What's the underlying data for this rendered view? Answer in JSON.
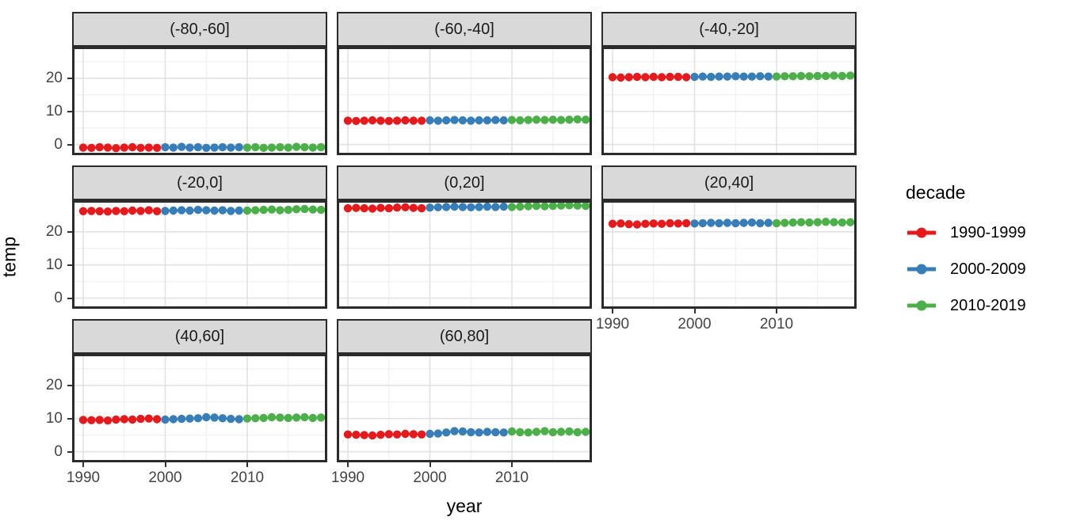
{
  "figure": {
    "y_axis_title": "temp",
    "x_axis_title": "year",
    "legend": {
      "title": "decade",
      "entries": [
        {
          "label": "1990-1999",
          "color": "#E41A1C"
        },
        {
          "label": "2000-2009",
          "color": "#377EB8"
        },
        {
          "label": "2010-2019",
          "color": "#4DAF4A"
        }
      ]
    }
  },
  "chart_data": {
    "type": "scatter",
    "title": "",
    "xlabel": "year",
    "ylabel": "temp",
    "legend_title": "decade",
    "legend_position": "right",
    "grid": true,
    "facet_variable": "latitude band",
    "x_ticks": [
      1990,
      2000,
      2010
    ],
    "x_minor_ticks": [
      1995,
      2005,
      2015
    ],
    "y_ticks": [
      0,
      10,
      20
    ],
    "y_minor_ticks": [
      5,
      15,
      25
    ],
    "xlim": [
      1988.6,
      2020.4
    ],
    "ylim": [
      -3.2,
      29.5
    ],
    "x": [
      1990,
      1991,
      1992,
      1993,
      1994,
      1995,
      1996,
      1997,
      1998,
      1999,
      2000,
      2001,
      2002,
      2003,
      2004,
      2005,
      2006,
      2007,
      2008,
      2009,
      2010,
      2011,
      2012,
      2013,
      2014,
      2015,
      2016,
      2017,
      2018,
      2019
    ],
    "series_by_decade": [
      {
        "name": "1990-1999",
        "start": 1990,
        "end": 1999,
        "color": "#E41A1C"
      },
      {
        "name": "2000-2009",
        "start": 2000,
        "end": 2009,
        "color": "#377EB8"
      },
      {
        "name": "2010-2019",
        "start": 2010,
        "end": 2019,
        "color": "#4DAF4A"
      }
    ],
    "facets": [
      {
        "label": "(-80,-60]",
        "values": [
          -0.9,
          -1.0,
          -0.8,
          -0.9,
          -1.1,
          -0.9,
          -0.8,
          -1.0,
          -0.9,
          -1.0,
          -0.8,
          -0.9,
          -0.7,
          -0.9,
          -0.8,
          -1.0,
          -0.9,
          -0.8,
          -0.9,
          -0.8,
          -0.9,
          -0.8,
          -1.0,
          -0.9,
          -0.8,
          -0.9,
          -0.7,
          -0.8,
          -0.9,
          -0.8
        ]
      },
      {
        "label": "(-60,-40]",
        "values": [
          7.2,
          7.1,
          7.2,
          7.3,
          7.2,
          7.1,
          7.2,
          7.3,
          7.2,
          7.2,
          7.3,
          7.2,
          7.3,
          7.4,
          7.3,
          7.2,
          7.3,
          7.3,
          7.4,
          7.3,
          7.4,
          7.3,
          7.4,
          7.5,
          7.4,
          7.5,
          7.4,
          7.5,
          7.6,
          7.5
        ]
      },
      {
        "label": "(-40,-20]",
        "values": [
          20.3,
          20.2,
          20.3,
          20.4,
          20.3,
          20.4,
          20.3,
          20.4,
          20.4,
          20.3,
          20.4,
          20.5,
          20.4,
          20.5,
          20.5,
          20.6,
          20.5,
          20.5,
          20.6,
          20.5,
          20.5,
          20.6,
          20.6,
          20.7,
          20.6,
          20.7,
          20.7,
          20.8,
          20.7,
          20.8
        ]
      },
      {
        "label": "(-20,0]",
        "values": [
          26.2,
          26.3,
          26.2,
          26.1,
          26.3,
          26.2,
          26.4,
          26.3,
          26.5,
          26.2,
          26.3,
          26.4,
          26.5,
          26.4,
          26.6,
          26.5,
          26.4,
          26.5,
          26.3,
          26.4,
          26.4,
          26.5,
          26.6,
          26.7,
          26.5,
          26.6,
          26.8,
          26.9,
          26.7,
          26.6
        ]
      },
      {
        "label": "(0,20]",
        "values": [
          27.1,
          27.2,
          27.1,
          27.0,
          27.2,
          27.1,
          27.3,
          27.4,
          27.2,
          27.1,
          27.3,
          27.4,
          27.5,
          27.6,
          27.5,
          27.4,
          27.5,
          27.6,
          27.5,
          27.6,
          27.5,
          27.6,
          27.7,
          27.8,
          27.7,
          27.8,
          27.9,
          28.0,
          27.9,
          27.8
        ]
      },
      {
        "label": "(20,40]",
        "values": [
          22.4,
          22.5,
          22.3,
          22.2,
          22.4,
          22.5,
          22.4,
          22.6,
          22.5,
          22.6,
          22.5,
          22.6,
          22.7,
          22.6,
          22.7,
          22.6,
          22.7,
          22.8,
          22.6,
          22.7,
          22.6,
          22.7,
          22.8,
          22.9,
          22.8,
          22.9,
          23.0,
          22.9,
          22.8,
          22.9
        ]
      },
      {
        "label": "(40,60]",
        "values": [
          9.6,
          9.5,
          9.6,
          9.4,
          9.7,
          9.8,
          9.7,
          9.9,
          10.0,
          9.8,
          9.7,
          9.8,
          9.9,
          10.0,
          10.1,
          10.4,
          10.3,
          10.1,
          9.9,
          9.8,
          10.0,
          10.1,
          10.2,
          10.4,
          10.3,
          10.2,
          10.3,
          10.4,
          10.2,
          10.3
        ]
      },
      {
        "label": "(60,80]",
        "values": [
          5.2,
          5.1,
          5.0,
          4.9,
          5.1,
          5.3,
          5.2,
          5.4,
          5.3,
          5.2,
          5.4,
          5.5,
          5.8,
          6.2,
          6.1,
          5.9,
          5.8,
          6.0,
          5.9,
          5.8,
          6.1,
          5.9,
          5.8,
          6.0,
          6.2,
          5.9,
          6.0,
          6.1,
          5.9,
          6.0
        ]
      }
    ]
  }
}
